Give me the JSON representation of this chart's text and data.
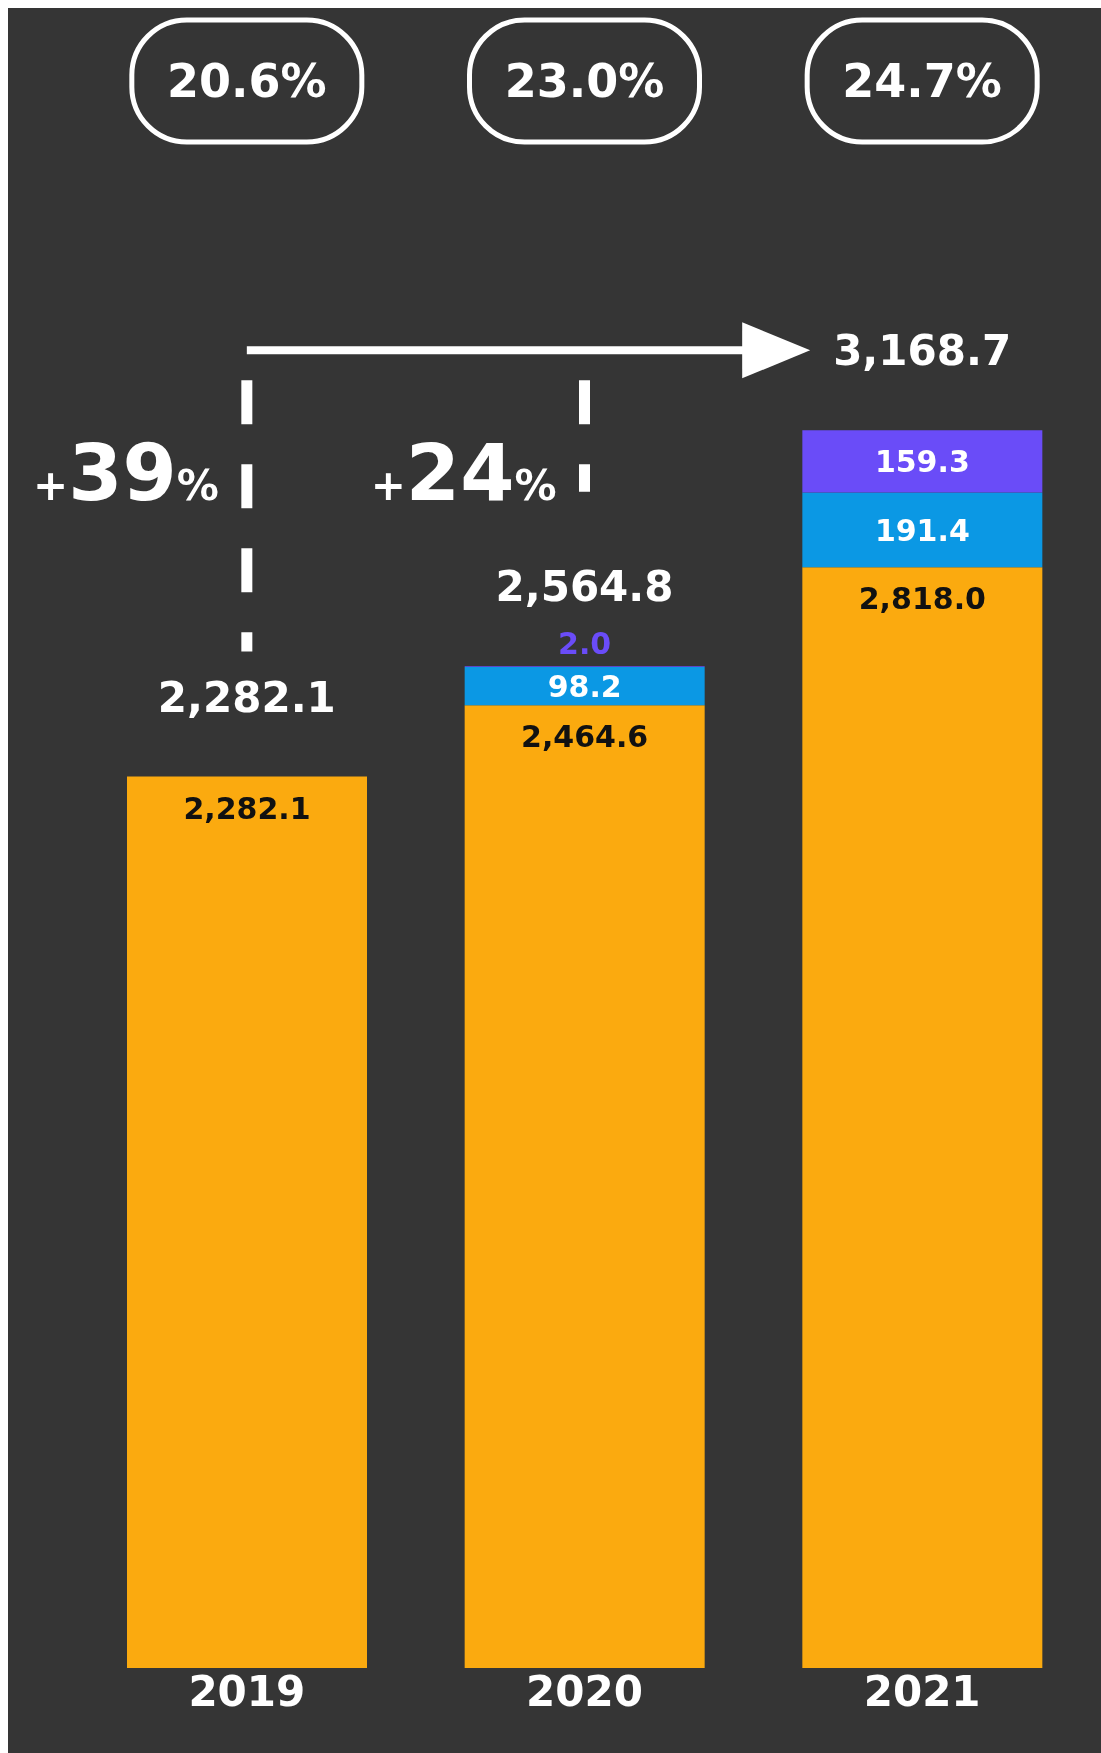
{
  "chart_data": {
    "type": "bar",
    "stacked": true,
    "categories": [
      "2019",
      "2020",
      "2021"
    ],
    "series": [
      {
        "color": "#fbaa0f",
        "values": [
          2282.1,
          2464.6,
          2818.0
        ],
        "value_labels": [
          "2,282.1",
          "2,464.6",
          "2,818.0"
        ]
      },
      {
        "color": "#0b98e4",
        "values": [
          null,
          98.2,
          191.4
        ],
        "value_labels": [
          null,
          "98.2",
          "191.4"
        ]
      },
      {
        "color": "#6a4cf8",
        "values": [
          null,
          2.0,
          159.3
        ],
        "value_labels": [
          null,
          "2.0",
          "159.3"
        ]
      }
    ],
    "totals": [
      "2,282.1",
      "2,564.8",
      "3,168.7"
    ],
    "annotations": [
      "20.6%",
      "23.0%",
      "24.7%",
      "+39%",
      "+24%"
    ],
    "legend": false,
    "grid": false
  }
}
